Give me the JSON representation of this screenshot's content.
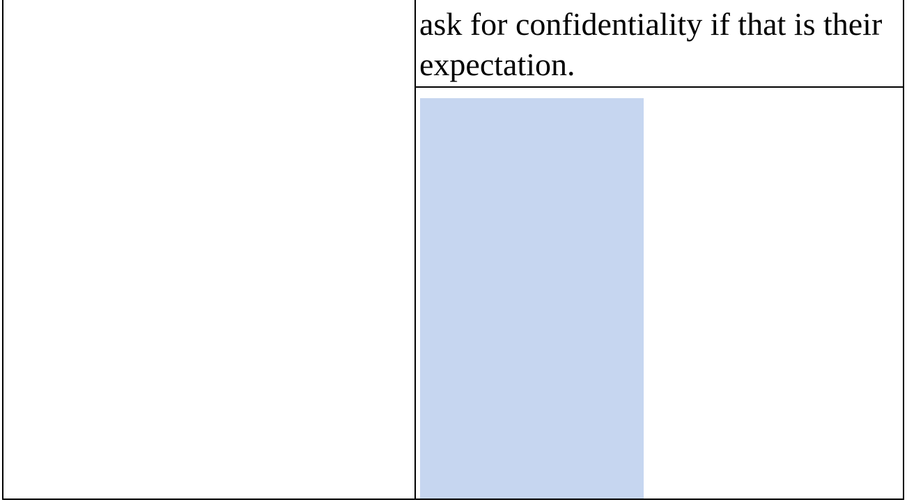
{
  "document": {
    "continued_text": "ask for confidentiality if that is their expectation.",
    "highlight_color": "#c6d6f0"
  }
}
